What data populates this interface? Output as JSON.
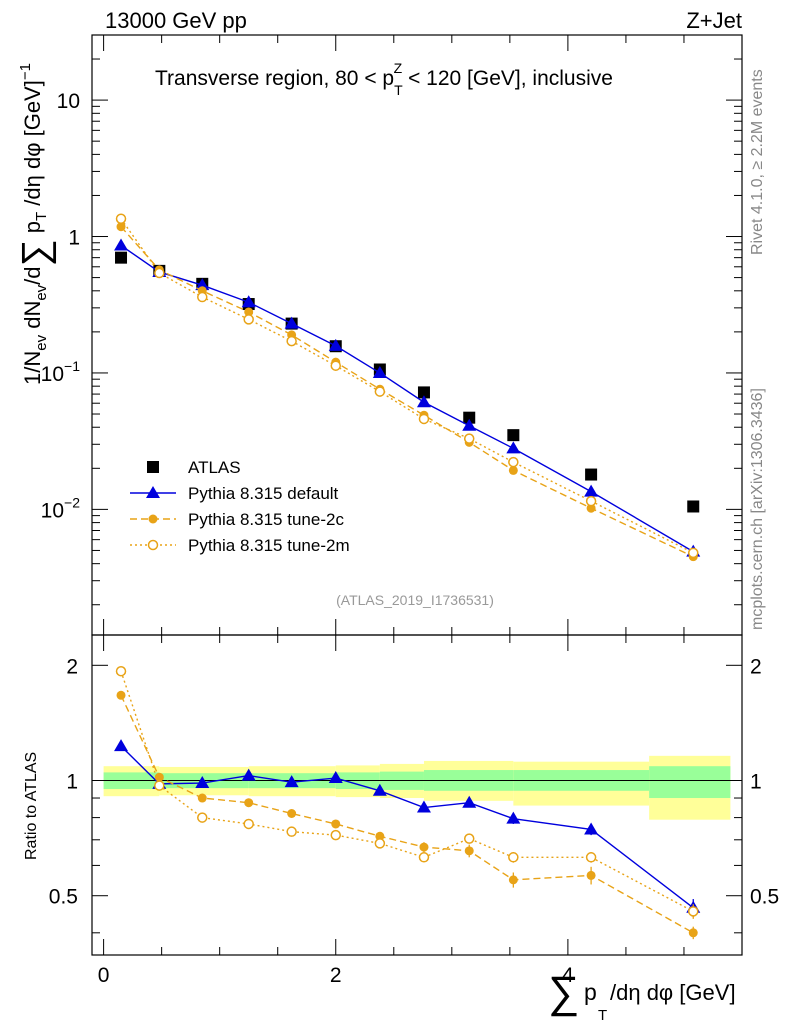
{
  "header": {
    "left_label": "13000 GeV pp",
    "right_label": "Z+Jet",
    "right_side_top": "Rivet 4.1.0, ≥ 2.2M events",
    "right_side_bottom": "mcplots.cern.ch [arXiv:1306.3436]"
  },
  "colors": {
    "data": "#000000",
    "default": "#0000dd",
    "tune2c": "#e8a317",
    "tune2m": "#e8a317",
    "band_inner": "#99ff99",
    "band_outer": "#ffff99"
  },
  "chart_data": [
    {
      "type": "scatter",
      "name": "main",
      "title": "Transverse region, 80 < p_T^Z < 120 [GeV], inclusive",
      "title_parts": {
        "pre": "Transverse region, 80 < p",
        "sub": "T",
        "sup": "Z",
        "post": " < 120 [GeV], inclusive"
      },
      "ylabel": "1/N_ev dN_ev/d∑ p_T /dη dφ  [GeV]^-1",
      "yscale": "log",
      "ylim": [
        0.0012,
        30
      ],
      "xlim": [
        -0.1,
        5.5
      ],
      "yticks": [
        {
          "value": 10,
          "base": "10",
          "exp": ""
        },
        {
          "value": 1,
          "base": "1",
          "exp": ""
        },
        {
          "value": 0.1,
          "base": "10",
          "exp": "−1"
        },
        {
          "value": 0.01,
          "base": "10",
          "exp": "−2"
        }
      ],
      "x": [
        0.15,
        0.48,
        0.85,
        1.25,
        1.62,
        2.0,
        2.38,
        2.76,
        3.15,
        3.53,
        4.2,
        5.08
      ],
      "series": [
        {
          "name": "ATLAS",
          "values": [
            0.7,
            0.56,
            0.45,
            0.32,
            0.23,
            0.157,
            0.106,
            0.072,
            0.047,
            0.035,
            0.018,
            0.0105
          ]
        },
        {
          "name": "Pythia 8.315 default",
          "values": [
            0.86,
            0.55,
            0.44,
            0.33,
            0.23,
            0.158,
            0.1,
            0.061,
            0.041,
            0.028,
            0.0135,
            0.0049
          ]
        },
        {
          "name": "Pythia 8.315 tune-2c",
          "values": [
            1.18,
            0.57,
            0.4,
            0.28,
            0.19,
            0.12,
            0.076,
            0.049,
            0.031,
            0.0193,
            0.0102,
            0.0045
          ]
        },
        {
          "name": "Pythia 8.315 tune-2m",
          "values": [
            1.35,
            0.54,
            0.36,
            0.247,
            0.171,
            0.113,
            0.073,
            0.046,
            0.033,
            0.0222,
            0.0115,
            0.0048
          ]
        }
      ],
      "legend": [
        {
          "label": "ATLAS",
          "marker": "square"
        },
        {
          "label": "Pythia 8.315 default",
          "marker": "triangle"
        },
        {
          "label": "Pythia 8.315 tune-2c",
          "marker": "circle-filled"
        },
        {
          "label": "Pythia 8.315 tune-2m",
          "marker": "circle-open"
        }
      ],
      "legend_position": "lower-left",
      "watermark": "(ATLAS_2019_I1736531)"
    },
    {
      "type": "scatter",
      "name": "ratio",
      "ylabel": "Ratio to ATLAS",
      "xlabel": "∑ p_T /dη dφ [GeV]",
      "xlabel_parts": {
        "sum": "∑",
        "p": "p",
        "sub": "T",
        "rest": " /dη dφ [GeV]"
      },
      "xlim": [
        -0.1,
        5.5
      ],
      "ylim": [
        0.35,
        2.4
      ],
      "yscale": "log",
      "yticks": [
        {
          "value": 2,
          "label": "2"
        },
        {
          "value": 1,
          "label": "1"
        },
        {
          "value": 0.5,
          "label": "0.5"
        }
      ],
      "xticks": [
        {
          "value": 0,
          "label": "0"
        },
        {
          "value": 2,
          "label": "2"
        },
        {
          "value": 4,
          "label": "4"
        }
      ],
      "reference_line": 1,
      "band_bins": [
        {
          "x0": 0.0,
          "x1": 0.48,
          "inner": [
            0.95,
            1.05
          ],
          "outer": [
            0.91,
            1.09
          ]
        },
        {
          "x0": 0.48,
          "x1": 1.25,
          "inner": [
            0.955,
            1.045
          ],
          "outer": [
            0.915,
            1.085
          ]
        },
        {
          "x0": 1.25,
          "x1": 2.0,
          "inner": [
            0.955,
            1.045
          ],
          "outer": [
            0.91,
            1.09
          ]
        },
        {
          "x0": 2.0,
          "x1": 2.38,
          "inner": [
            0.95,
            1.05
          ],
          "outer": [
            0.905,
            1.095
          ]
        },
        {
          "x0": 2.38,
          "x1": 2.76,
          "inner": [
            0.945,
            1.055
          ],
          "outer": [
            0.9,
            1.105
          ]
        },
        {
          "x0": 2.76,
          "x1": 3.53,
          "inner": [
            0.94,
            1.065
          ],
          "outer": [
            0.885,
            1.125
          ]
        },
        {
          "x0": 3.53,
          "x1": 4.7,
          "inner": [
            0.94,
            1.065
          ],
          "outer": [
            0.86,
            1.12
          ]
        },
        {
          "x0": 4.7,
          "x1": 5.4,
          "inner": [
            0.9,
            1.09
          ],
          "outer": [
            0.79,
            1.16
          ]
        }
      ],
      "x": [
        0.15,
        0.48,
        0.85,
        1.25,
        1.62,
        2.0,
        2.38,
        2.76,
        3.15,
        3.53,
        4.2,
        5.08
      ],
      "series": [
        {
          "name": "Pythia 8.315 default",
          "values": [
            1.23,
            0.98,
            0.985,
            1.03,
            0.99,
            1.015,
            0.94,
            0.85,
            0.875,
            0.795,
            0.745,
            0.465
          ],
          "errors": [
            0.01,
            0.01,
            0.01,
            0.01,
            0.01,
            0.01,
            0.01,
            0.015,
            0.02,
            0.025,
            0.025,
            0.025
          ]
        },
        {
          "name": "Pythia 8.315 tune-2c",
          "values": [
            1.67,
            1.02,
            0.9,
            0.875,
            0.82,
            0.77,
            0.715,
            0.67,
            0.655,
            0.55,
            0.565,
            0.4
          ],
          "errors": [
            0.01,
            0.01,
            0.01,
            0.01,
            0.01,
            0.01,
            0.015,
            0.02,
            0.025,
            0.025,
            0.03,
            0.015
          ]
        },
        {
          "name": "Pythia 8.315 tune-2m",
          "values": [
            1.93,
            0.97,
            0.8,
            0.77,
            0.735,
            0.72,
            0.685,
            0.63,
            0.705,
            0.63,
            0.63,
            0.455
          ],
          "errors": [
            0.01,
            0.01,
            0.01,
            0.01,
            0.01,
            0.01,
            0.01,
            0.015,
            0.02,
            0.02,
            0.02,
            0.02
          ]
        }
      ]
    }
  ]
}
